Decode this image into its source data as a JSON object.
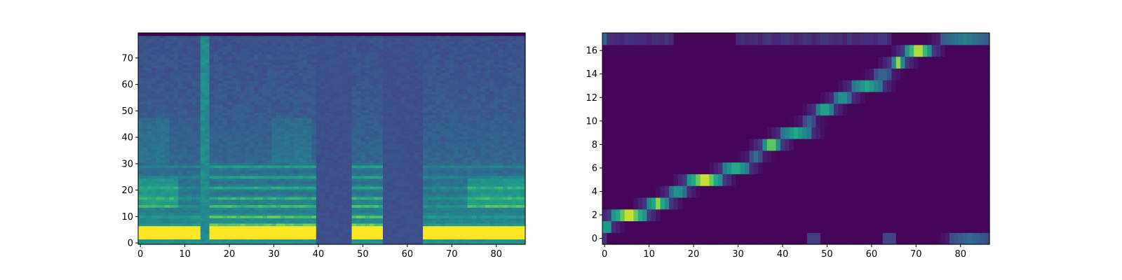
{
  "chart_data": [
    {
      "type": "heatmap",
      "name": "mel-spectrogram",
      "title": "",
      "xlabel": "",
      "ylabel": "",
      "xlim": [
        -0.5,
        86.5
      ],
      "ylim": [
        -0.5,
        79.5
      ],
      "x_ticks": [
        0,
        10,
        20,
        30,
        40,
        50,
        60,
        70,
        80
      ],
      "y_ticks": [
        0,
        10,
        20,
        30,
        40,
        50,
        60,
        70
      ],
      "n_cols": 87,
      "n_rows": 80,
      "colormap": "viridis",
      "grid": false,
      "silent_segments": [
        [
          40,
          47
        ],
        [
          55,
          63
        ]
      ],
      "voiced_segments": [
        [
          0,
          13
        ],
        [
          16,
          39
        ],
        [
          48,
          55
        ],
        [
          64,
          86
        ]
      ],
      "harmonic_rows": [
        4,
        7,
        10,
        14,
        17,
        21,
        25,
        29
      ]
    },
    {
      "type": "heatmap",
      "name": "attention-alignment",
      "title": "",
      "xlabel": "",
      "ylabel": "",
      "xlim": [
        -0.5,
        86.5
      ],
      "ylim": [
        -0.5,
        17.5
      ],
      "x_ticks": [
        0,
        10,
        20,
        30,
        40,
        50,
        60,
        70,
        80
      ],
      "y_ticks": [
        0,
        2,
        4,
        6,
        8,
        10,
        12,
        14,
        16
      ],
      "n_cols": 87,
      "n_rows": 18,
      "colormap": "viridis",
      "grid": false,
      "alignment": [
        {
          "row": 0,
          "start": 78,
          "end": 86,
          "peak": 0.45
        },
        {
          "row": 1,
          "start": 0,
          "end": 1,
          "peak": 0.8
        },
        {
          "row": 2,
          "start": 2,
          "end": 9,
          "peak": 1.0
        },
        {
          "row": 3,
          "start": 10,
          "end": 14,
          "peak": 0.9
        },
        {
          "row": 4,
          "start": 15,
          "end": 18,
          "peak": 0.7
        },
        {
          "row": 5,
          "start": 19,
          "end": 26,
          "peak": 1.0
        },
        {
          "row": 6,
          "start": 27,
          "end": 32,
          "peak": 0.8
        },
        {
          "row": 7,
          "start": 33,
          "end": 35,
          "peak": 0.45
        },
        {
          "row": 8,
          "start": 36,
          "end": 39,
          "peak": 0.95
        },
        {
          "row": 9,
          "start": 40,
          "end": 46,
          "peak": 0.75
        },
        {
          "row": 10,
          "start": 45,
          "end": 47,
          "peak": 0.4
        },
        {
          "row": 11,
          "start": 48,
          "end": 51,
          "peak": 0.8
        },
        {
          "row": 12,
          "start": 52,
          "end": 55,
          "peak": 0.7
        },
        {
          "row": 13,
          "start": 56,
          "end": 62,
          "peak": 0.75
        },
        {
          "row": 14,
          "start": 61,
          "end": 64,
          "peak": 0.45
        },
        {
          "row": 15,
          "start": 65,
          "end": 67,
          "peak": 0.9
        },
        {
          "row": 16,
          "start": 68,
          "end": 73,
          "peak": 1.0
        },
        {
          "row": 17,
          "start": 76,
          "end": 86,
          "peak": 0.55
        }
      ]
    }
  ]
}
